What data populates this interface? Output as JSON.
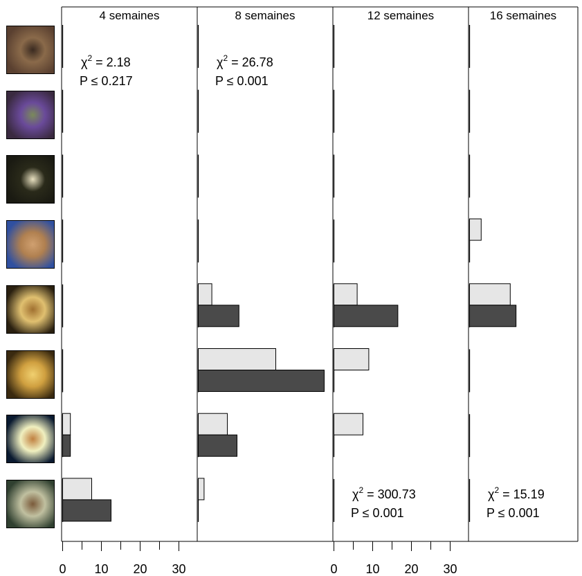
{
  "chart_data": {
    "type": "bar",
    "orientation": "horizontal",
    "stage_images": [
      {
        "icon": "flowering-stem-photo",
        "colors": [
          "#5a4030",
          "#8a6a4a",
          "#3a2a20"
        ]
      },
      {
        "icon": "purple-flowers-photo",
        "colors": [
          "#3a2a40",
          "#6a4a9a",
          "#7a8a5a"
        ]
      },
      {
        "icon": "emerging-shoot-photo",
        "colors": [
          "#1a1a12",
          "#2a2a1a",
          "#e8e0c0"
        ]
      },
      {
        "icon": "root-cluster-photo",
        "colors": [
          "#3050a0",
          "#b08050",
          "#d0a070"
        ]
      },
      {
        "icon": "tubercle-roots-photo",
        "colors": [
          "#2a2010",
          "#e0c070",
          "#a07030"
        ]
      },
      {
        "icon": "spider-tubercle-photo",
        "colors": [
          "#3a2a10",
          "#d0a040",
          "#f0d070"
        ]
      },
      {
        "icon": "germinated-seed-photo",
        "colors": [
          "#0a1a30",
          "#f0f0c0",
          "#c08040"
        ]
      },
      {
        "icon": "seed-photo",
        "colors": [
          "#304030",
          "#c0c0a0",
          "#7a5a3a"
        ]
      }
    ],
    "panels": [
      {
        "title": "4 semaines",
        "stat_position": "top",
        "chi_label": "χ",
        "chi_value": " = 2.18",
        "p_text": "P ≤ 0.217",
        "light": [
          0,
          0,
          0,
          0,
          0,
          0,
          2,
          7.5
        ],
        "dark": [
          0,
          0,
          0,
          0,
          0,
          0,
          2,
          12.5
        ]
      },
      {
        "title": "8 semaines",
        "stat_position": "top",
        "chi_label": "χ",
        "chi_value": " = 26.78",
        "p_text": "P ≤ 0.001",
        "light": [
          0,
          0,
          0,
          0,
          3.5,
          20,
          7.5,
          1.5
        ],
        "dark": [
          0,
          0,
          0,
          0,
          10.5,
          32.5,
          10,
          0
        ]
      },
      {
        "title": "12 semaines",
        "stat_position": "bottom",
        "chi_label": "χ",
        "chi_value": " = 300.73",
        "p_text": "P ≤ 0.001",
        "light": [
          0,
          0,
          0,
          0,
          6,
          9,
          7.5,
          0
        ],
        "dark": [
          0,
          0,
          0,
          0,
          16.5,
          0,
          0,
          0
        ]
      },
      {
        "title": "16 semaines",
        "stat_position": "bottom",
        "chi_label": "χ",
        "chi_value": " = 15.19",
        "p_text": "P ≤ 0.001",
        "light": [
          0,
          0,
          0,
          3,
          10.5,
          0,
          0,
          0
        ],
        "dark": [
          0,
          0,
          0,
          0,
          12,
          0,
          0,
          0
        ]
      }
    ],
    "x_ticks": [
      "0",
      "10",
      "20",
      "30"
    ],
    "x_axis_panels": [
      0,
      2
    ],
    "xlim": [
      0,
      34
    ],
    "colors": {
      "light": "#e6e6e6",
      "dark": "#4a4a4a",
      "stroke": "#000000"
    }
  }
}
